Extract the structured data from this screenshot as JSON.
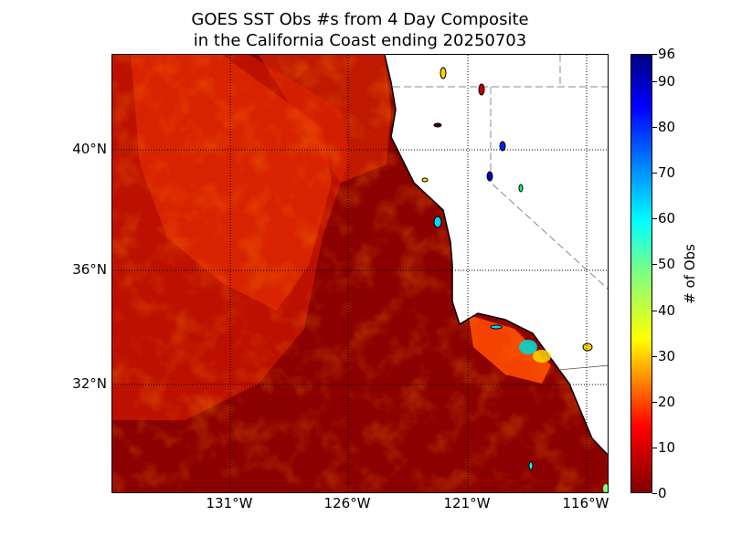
{
  "title": {
    "line1": "GOES SST Obs #s from 4 Day Composite",
    "line2": "in the California Coast ending 20250703"
  },
  "map": {
    "lat_labels": [
      "40°N",
      "36°N",
      "32°N"
    ],
    "lon_labels": [
      "131°W",
      "126°W",
      "121°W",
      "116°W"
    ],
    "ocean_color": "#8b0000",
    "land_color": "#ffffff",
    "patch_colors": [
      "#c41400",
      "#e22a00",
      "#ff4a00"
    ]
  },
  "colorbar": {
    "label": "# of Obs",
    "ticks": [
      "0",
      "10",
      "20",
      "30",
      "40",
      "50",
      "60",
      "70",
      "80",
      "90",
      "96"
    ],
    "colormap": "jet",
    "range": [
      0,
      96
    ]
  }
}
